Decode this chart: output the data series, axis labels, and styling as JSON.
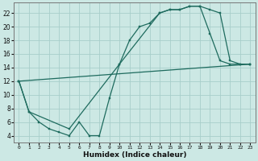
{
  "xlabel": "Humidex (Indice chaleur)",
  "bg_color": "#cce8e4",
  "grid_color": "#a8ceca",
  "line_color": "#1e6b5e",
  "xlim": [
    -0.5,
    23.5
  ],
  "ylim": [
    3.0,
    23.5
  ],
  "yticks": [
    4,
    6,
    8,
    10,
    12,
    14,
    16,
    18,
    20,
    22
  ],
  "xticks": [
    0,
    1,
    2,
    3,
    4,
    5,
    6,
    7,
    8,
    9,
    10,
    11,
    12,
    13,
    14,
    15,
    16,
    17,
    18,
    19,
    20,
    21,
    22,
    23
  ],
  "line1_x": [
    0,
    1,
    2,
    3,
    4,
    5,
    6,
    7,
    8,
    9,
    10,
    11,
    12,
    13,
    14,
    15,
    16,
    17,
    18,
    19,
    20,
    21,
    22,
    23
  ],
  "line1_y": [
    12,
    7.5,
    6,
    5,
    4.5,
    4,
    6,
    4,
    4,
    9.5,
    14.5,
    18,
    20,
    20.5,
    22,
    22.5,
    22.5,
    23,
    23,
    22.5,
    22,
    15,
    14.5,
    14.5
  ],
  "line2_x": [
    0,
    1,
    5,
    10,
    14,
    15,
    16,
    17,
    18,
    19,
    20,
    21,
    22,
    23
  ],
  "line2_y": [
    12,
    7.5,
    5,
    14.5,
    22,
    22.5,
    22.5,
    23,
    23,
    19,
    15,
    14.5,
    14.5,
    14.5
  ],
  "line3_x": [
    0,
    23
  ],
  "line3_y": [
    12,
    14.5
  ]
}
